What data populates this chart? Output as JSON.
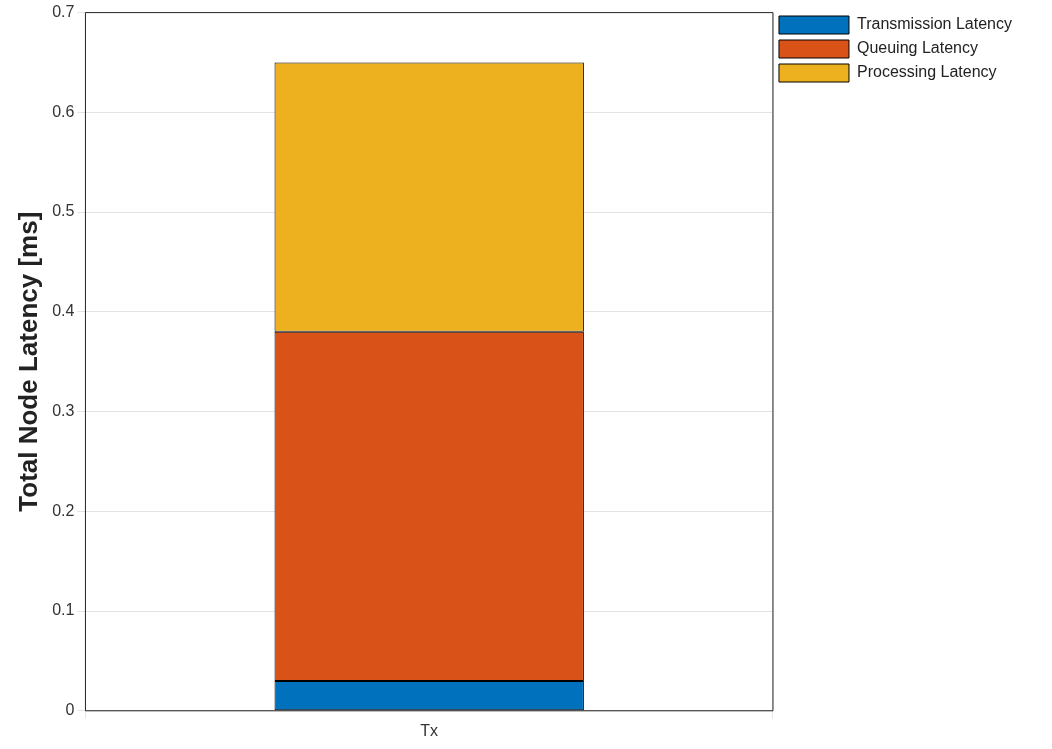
{
  "chart_data": {
    "type": "bar",
    "ylabel": "Total Node Latency [ms]",
    "categories": [
      "Tx"
    ],
    "stacked": true,
    "series": [
      {
        "name": "Transmission Latency",
        "color": "#0072bd",
        "values": [
          0.03
        ]
      },
      {
        "name": "Queuing Latency",
        "color": "#d95319",
        "values": [
          0.35
        ]
      },
      {
        "name": "Processing Latency",
        "color": "#edb120",
        "values": [
          0.27
        ]
      }
    ],
    "ylim": [
      0,
      0.7
    ],
    "yticks": [
      0,
      0.1,
      0.2,
      0.3,
      0.4,
      0.5,
      0.6,
      0.7
    ],
    "grid": true,
    "legend": "top right"
  }
}
